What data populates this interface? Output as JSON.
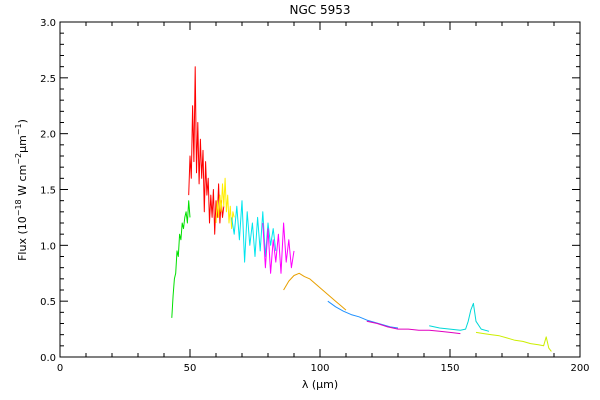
{
  "chart_data": {
    "type": "line",
    "title": "NGC 5953",
    "xlabel": "λ (μm)",
    "ylabel": {
      "prefix": "Flux (10",
      "exp1": "−18",
      "mid": " W cm",
      "exp2": "−2",
      "mid2": "μm",
      "exp3": "−1",
      "suffix": ")"
    },
    "xlim": [
      0,
      200
    ],
    "ylim": [
      0.0,
      3.0
    ],
    "x_ticks": [
      0,
      50,
      100,
      150,
      200
    ],
    "x_tick_labels": [
      "0",
      "50",
      "100",
      "150",
      "200"
    ],
    "y_ticks": [
      0.0,
      0.5,
      1.0,
      1.5,
      2.0,
      2.5,
      3.0
    ],
    "y_tick_labels": [
      "0.0",
      "0.5",
      "1.0",
      "1.5",
      "2.0",
      "2.5",
      "3.0"
    ],
    "grid": false,
    "series": [
      {
        "color": "#00e000",
        "x": [
          43.0,
          43.5,
          44.0,
          44.5,
          45.0,
          45.5,
          46.0,
          46.5,
          47.0,
          47.5,
          48.0,
          48.5,
          49.0,
          49.5,
          50.0
        ],
        "y": [
          0.35,
          0.55,
          0.7,
          0.75,
          0.95,
          0.9,
          1.1,
          1.05,
          1.2,
          1.15,
          1.25,
          1.3,
          1.2,
          1.4,
          1.25
        ]
      },
      {
        "color": "#ff0000",
        "x": [
          49.5,
          50.0,
          50.5,
          51.0,
          51.5,
          52.0,
          52.5,
          53.0,
          53.5,
          54.0,
          54.5,
          55.0,
          55.5,
          56.0,
          56.5,
          57.0,
          57.5,
          58.0,
          58.5,
          59.0,
          59.5,
          60.0,
          60.5,
          61.0,
          61.5,
          62.0,
          62.5,
          63.0
        ],
        "y": [
          1.45,
          1.8,
          1.6,
          2.25,
          1.75,
          2.6,
          1.65,
          2.1,
          1.55,
          1.95,
          1.6,
          1.85,
          1.3,
          1.75,
          1.45,
          1.6,
          1.2,
          1.45,
          1.25,
          1.5,
          1.1,
          1.4,
          1.25,
          1.55,
          1.2,
          1.4,
          1.25,
          1.35
        ]
      },
      {
        "color": "#ffee00",
        "x": [
          60.0,
          60.5,
          61.0,
          61.5,
          62.0,
          62.5,
          63.0,
          63.5,
          64.0,
          64.5,
          65.0,
          65.5,
          66.0,
          66.5,
          67.0
        ],
        "y": [
          1.2,
          1.4,
          1.25,
          1.45,
          1.3,
          1.55,
          1.35,
          1.6,
          1.3,
          1.45,
          1.2,
          1.35,
          1.15,
          1.3,
          1.25
        ]
      },
      {
        "color": "#00e5ee",
        "x": [
          66.0,
          67.0,
          68.0,
          69.0,
          70.0,
          71.0,
          72.0,
          73.0,
          74.0,
          75.0,
          76.0,
          77.0,
          78.0,
          79.0,
          80.0,
          81.0,
          82.0,
          83.0
        ],
        "y": [
          1.25,
          1.1,
          1.35,
          1.05,
          1.4,
          0.85,
          1.3,
          1.0,
          1.2,
          0.9,
          1.25,
          0.95,
          1.3,
          0.9,
          1.2,
          1.0,
          1.15,
          0.95
        ]
      },
      {
        "color": "#ff00ff",
        "x": [
          78.0,
          79.0,
          80.0,
          81.0,
          82.0,
          83.0,
          84.0,
          85.0,
          86.0,
          87.0,
          88.0,
          89.0,
          90.0
        ],
        "y": [
          1.2,
          0.8,
          1.15,
          0.75,
          1.05,
          0.85,
          1.1,
          0.75,
          1.2,
          0.85,
          1.05,
          0.8,
          0.95
        ]
      },
      {
        "color": "#e8a000",
        "x": [
          86.0,
          88.0,
          90.0,
          92.0,
          94.0,
          96.0,
          98.0,
          100.0,
          102.0,
          104.0,
          106.0,
          108.0,
          110.0
        ],
        "y": [
          0.6,
          0.68,
          0.73,
          0.75,
          0.72,
          0.7,
          0.66,
          0.62,
          0.58,
          0.54,
          0.5,
          0.46,
          0.42
        ]
      },
      {
        "color": "#1e90ff",
        "x": [
          103.0,
          106.0,
          109.0,
          112.0,
          115.0,
          118.0,
          121.0,
          124.0,
          127.0,
          130.0
        ],
        "y": [
          0.5,
          0.45,
          0.41,
          0.38,
          0.36,
          0.33,
          0.31,
          0.29,
          0.27,
          0.26
        ]
      },
      {
        "color": "#e000c0",
        "x": [
          118.0,
          122.0,
          126.0,
          130.0,
          134.0,
          138.0,
          142.0,
          146.0,
          150.0,
          154.0
        ],
        "y": [
          0.32,
          0.3,
          0.27,
          0.25,
          0.25,
          0.24,
          0.24,
          0.23,
          0.22,
          0.21
        ]
      },
      {
        "color": "#00d8d8",
        "x": [
          142.0,
          146.0,
          150.0,
          154.0,
          156.0,
          157.0,
          158.0,
          159.0,
          160.0,
          162.0,
          165.0
        ],
        "y": [
          0.28,
          0.26,
          0.25,
          0.24,
          0.25,
          0.32,
          0.42,
          0.48,
          0.32,
          0.25,
          0.23
        ]
      },
      {
        "color": "#ccee00",
        "x": [
          160.0,
          163.0,
          166.0,
          169.0,
          172.0,
          175.0,
          178.0,
          181.0,
          184.0,
          186.0,
          187.0,
          188.0,
          189.0
        ],
        "y": [
          0.22,
          0.21,
          0.2,
          0.19,
          0.17,
          0.15,
          0.14,
          0.12,
          0.11,
          0.1,
          0.18,
          0.08,
          0.05
        ]
      }
    ]
  }
}
